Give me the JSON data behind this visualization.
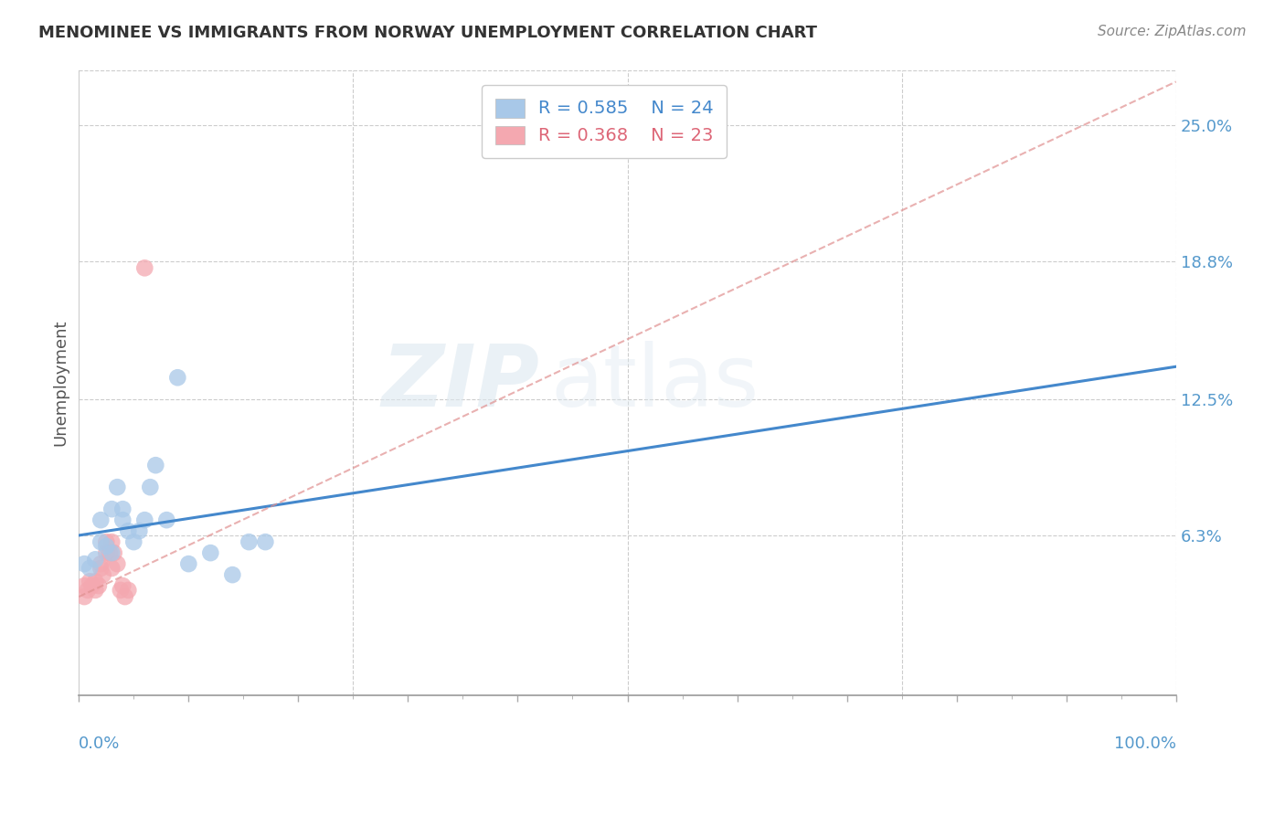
{
  "title": "MENOMINEE VS IMMIGRANTS FROM NORWAY UNEMPLOYMENT CORRELATION CHART",
  "source": "Source: ZipAtlas.com",
  "ylabel": "Unemployment",
  "yticks": [
    0.0,
    0.063,
    0.125,
    0.188,
    0.25
  ],
  "ytick_labels": [
    "",
    "6.3%",
    "12.5%",
    "18.8%",
    "25.0%"
  ],
  "xlim": [
    0.0,
    1.0
  ],
  "ylim": [
    -0.01,
    0.275
  ],
  "legend_r1": "R = 0.585",
  "legend_n1": "N = 24",
  "legend_r2": "R = 0.368",
  "legend_n2": "N = 23",
  "blue_color": "#a8c8e8",
  "pink_color": "#f4a8b0",
  "blue_line_color": "#4488cc",
  "pink_line_color": "#e09090",
  "watermark_zip": "ZIP",
  "watermark_atlas": "atlas",
  "blue_scatter_x": [
    0.005,
    0.01,
    0.015,
    0.02,
    0.02,
    0.025,
    0.03,
    0.03,
    0.035,
    0.04,
    0.04,
    0.045,
    0.05,
    0.055,
    0.06,
    0.065,
    0.07,
    0.08,
    0.09,
    0.1,
    0.12,
    0.14,
    0.155,
    0.17
  ],
  "blue_scatter_y": [
    0.05,
    0.048,
    0.052,
    0.06,
    0.07,
    0.058,
    0.055,
    0.075,
    0.085,
    0.07,
    0.075,
    0.065,
    0.06,
    0.065,
    0.07,
    0.085,
    0.095,
    0.07,
    0.135,
    0.05,
    0.055,
    0.045,
    0.06,
    0.06
  ],
  "pink_scatter_x": [
    0.005,
    0.005,
    0.008,
    0.01,
    0.012,
    0.015,
    0.015,
    0.018,
    0.02,
    0.02,
    0.022,
    0.025,
    0.025,
    0.028,
    0.03,
    0.03,
    0.032,
    0.035,
    0.038,
    0.04,
    0.042,
    0.045,
    0.06
  ],
  "pink_scatter_y": [
    0.04,
    0.035,
    0.038,
    0.042,
    0.04,
    0.038,
    0.042,
    0.04,
    0.048,
    0.05,
    0.045,
    0.055,
    0.06,
    0.055,
    0.048,
    0.06,
    0.055,
    0.05,
    0.038,
    0.04,
    0.035,
    0.038,
    0.185
  ],
  "blue_trend_x": [
    0.0,
    1.0
  ],
  "blue_trend_y": [
    0.063,
    0.14
  ],
  "pink_trend_x": [
    0.0,
    1.0
  ],
  "pink_trend_y": [
    0.035,
    0.27
  ],
  "background_color": "#ffffff",
  "grid_color": "#cccccc",
  "title_color": "#333333",
  "tick_label_color": "#5599cc",
  "xtick_major": [
    0.0,
    0.1,
    0.2,
    0.3,
    0.4,
    0.5,
    0.6,
    0.7,
    0.8,
    0.9,
    1.0
  ],
  "xtick_minor": [
    0.05,
    0.15,
    0.25,
    0.35,
    0.45,
    0.55,
    0.65,
    0.75,
    0.85,
    0.95
  ]
}
